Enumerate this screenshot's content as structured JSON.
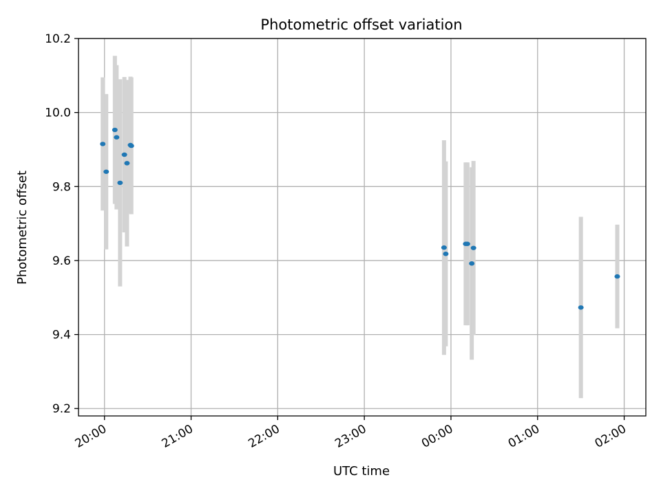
{
  "chart_data": {
    "type": "scatter",
    "title": "Photometric offset variation",
    "xlabel": "UTC time",
    "ylabel": "Photometric offset",
    "x_unit": "UTC time (hours since 20:00 on first night)",
    "xlim": [
      -0.3,
      6.25
    ],
    "ylim": [
      9.18,
      10.2
    ],
    "grid": true,
    "x_ticks": [
      {
        "value": 0,
        "label": "20:00"
      },
      {
        "value": 1,
        "label": "21:00"
      },
      {
        "value": 2,
        "label": "22:00"
      },
      {
        "value": 3,
        "label": "23:00"
      },
      {
        "value": 4,
        "label": "00:00"
      },
      {
        "value": 5,
        "label": "01:00"
      },
      {
        "value": 6,
        "label": "02:00"
      }
    ],
    "y_ticks": [
      {
        "value": 9.2,
        "label": "9.2"
      },
      {
        "value": 9.4,
        "label": "9.4"
      },
      {
        "value": 9.6,
        "label": "9.6"
      },
      {
        "value": 9.8,
        "label": "9.8"
      },
      {
        "value": 10.0,
        "label": "10.0"
      },
      {
        "value": 10.2,
        "label": "10.2"
      }
    ],
    "colors": {
      "marker": "#1f77b4",
      "errorbar": "#d3d3d3",
      "grid": "#b0b0b0"
    },
    "points": [
      {
        "time": "19:59",
        "x": -0.02,
        "y": 9.915,
        "err": 0.18
      },
      {
        "time": "20:01",
        "x": 0.02,
        "y": 9.84,
        "err": 0.21
      },
      {
        "time": "20:07",
        "x": 0.12,
        "y": 9.953,
        "err": 0.2
      },
      {
        "time": "20:08",
        "x": 0.14,
        "y": 9.933,
        "err": 0.195
      },
      {
        "time": "20:10",
        "x": 0.18,
        "y": 9.81,
        "err": 0.28
      },
      {
        "time": "20:13",
        "x": 0.23,
        "y": 9.886,
        "err": 0.21
      },
      {
        "time": "20:15",
        "x": 0.26,
        "y": 9.863,
        "err": 0.225
      },
      {
        "time": "20:18",
        "x": 0.3,
        "y": 9.912,
        "err": 0.185
      },
      {
        "time": "20:18",
        "x": 0.31,
        "y": 9.91,
        "err": 0.185
      },
      {
        "time": "23:55",
        "x": 3.92,
        "y": 9.635,
        "err": 0.29
      },
      {
        "time": "23:56",
        "x": 3.94,
        "y": 9.618,
        "err": 0.25
      },
      {
        "time": "00:10",
        "x": 4.17,
        "y": 9.645,
        "err": 0.22
      },
      {
        "time": "00:11",
        "x": 4.19,
        "y": 9.645,
        "err": 0.22
      },
      {
        "time": "00:14",
        "x": 4.24,
        "y": 9.592,
        "err": 0.26
      },
      {
        "time": "00:15",
        "x": 4.26,
        "y": 9.634,
        "err": 0.235
      },
      {
        "time": "01:30",
        "x": 5.5,
        "y": 9.473,
        "err": 0.245
      },
      {
        "time": "01:55",
        "x": 5.92,
        "y": 9.557,
        "err": 0.14
      }
    ]
  }
}
